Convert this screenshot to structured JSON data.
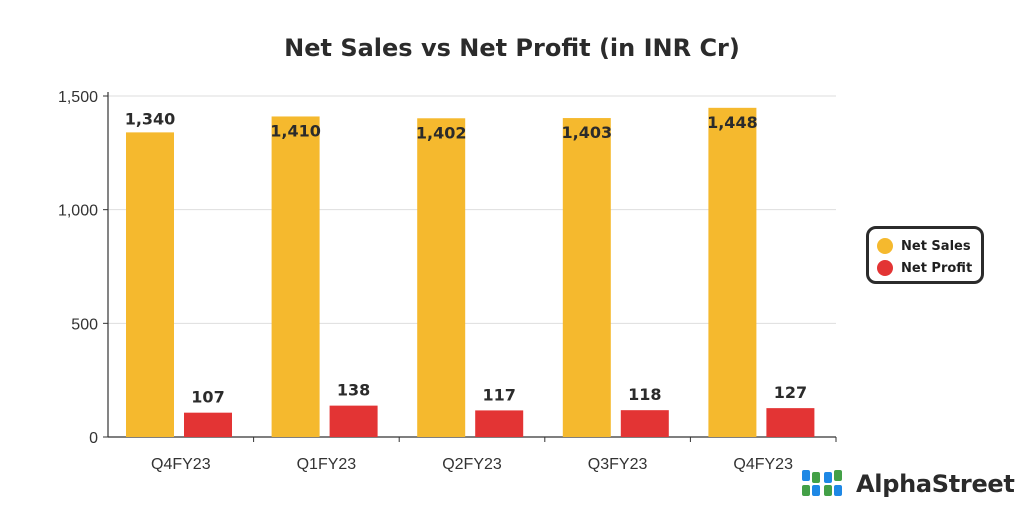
{
  "chart_data": {
    "type": "bar",
    "title": "Net Sales vs Net Profit (in INR Cr)",
    "categories": [
      "Q4FY23",
      "Q1FY23",
      "Q2FY23",
      "Q3FY23",
      "Q4FY23"
    ],
    "series": [
      {
        "name": "Net Sales",
        "values": [
          1340,
          1410,
          1402,
          1403,
          1448
        ],
        "labels": [
          "1,340",
          "1,410",
          "1,402",
          "1,403",
          "1,448"
        ],
        "color": "#F5B92E"
      },
      {
        "name": "Net Profit",
        "values": [
          107,
          138,
          117,
          118,
          127
        ],
        "labels": [
          "107",
          "138",
          "117",
          "118",
          "127"
        ],
        "color": "#E33434"
      }
    ],
    "ylim": [
      0,
      1500
    ],
    "yticks": [
      0,
      500,
      1000,
      1500
    ],
    "ytick_labels": [
      "0",
      "500",
      "1,000",
      "1,500"
    ],
    "grid": true,
    "legend_position": "right"
  },
  "brand": {
    "name": "AlphaStreet",
    "logo_icon": "alphastreet-logo-icon",
    "logo_colors": [
      "#1E88E5",
      "#43A047"
    ]
  }
}
